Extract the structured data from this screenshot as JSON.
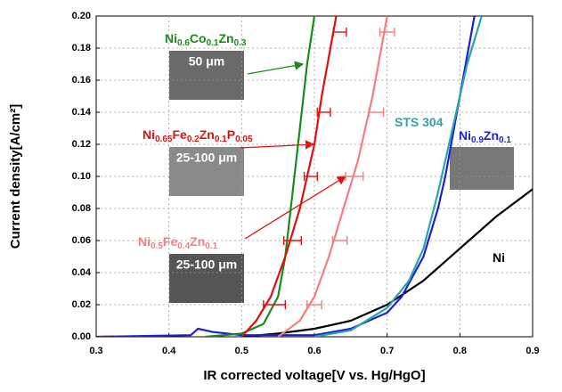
{
  "chart_data": {
    "type": "line",
    "xlabel": "IR corrected voltage[V vs. Hg/HgO]",
    "ylabel": "Current density[A/cm²]",
    "xlim": [
      0.3,
      0.9
    ],
    "xticks": [
      0.3,
      0.4,
      0.5,
      0.6,
      0.7,
      0.8,
      0.9
    ],
    "ylim": [
      0,
      0.2
    ],
    "yticks": [
      {
        "value": 0,
        "label": "0.00"
      },
      {
        "value": 0.02,
        "label": "0.02"
      },
      {
        "value": 0.04,
        "label": "0.04"
      },
      {
        "value": 0.06,
        "label": "0.06"
      },
      {
        "value": 0.08,
        "label": "0.08"
      },
      {
        "value": 0.1,
        "label": "0.10"
      },
      {
        "value": 0.12,
        "label": "0.12"
      },
      {
        "value": 0.14,
        "label": "0.14"
      },
      {
        "value": 0.16,
        "label": "0.16"
      },
      {
        "value": 0.18,
        "label": "0.18"
      },
      {
        "value": 0.2,
        "label": "0.20"
      }
    ],
    "grid": true,
    "series": [
      {
        "name": "Ni",
        "color": "#000000",
        "x": [
          0.5,
          0.55,
          0.6,
          0.65,
          0.7,
          0.75,
          0.8,
          0.85,
          0.9
        ],
        "values": [
          0,
          0.002,
          0.005,
          0.01,
          0.02,
          0.035,
          0.055,
          0.075,
          0.092
        ]
      },
      {
        "name": "Ni0.9Zn0.1",
        "color": "#1f1fd0",
        "x": [
          0.3,
          0.43,
          0.44,
          0.46,
          0.5,
          0.6,
          0.65,
          0.7,
          0.72,
          0.75,
          0.77,
          0.78,
          0.8,
          0.82
        ],
        "values": [
          0,
          0.001,
          0.005,
          0.003,
          0.001,
          0.001,
          0.005,
          0.015,
          0.025,
          0.05,
          0.08,
          0.1,
          0.15,
          0.2
        ]
      },
      {
        "name": "STS 304",
        "color": "#2aa5a5",
        "x": [
          0.6,
          0.65,
          0.7,
          0.73,
          0.75,
          0.77,
          0.79,
          0.81,
          0.83
        ],
        "values": [
          0,
          0.004,
          0.018,
          0.035,
          0.055,
          0.09,
          0.13,
          0.17,
          0.2
        ]
      },
      {
        "name": "Ni0.6Co0.1Zn0.3",
        "color": "#1a8a1a",
        "x": [
          0.45,
          0.5,
          0.53,
          0.55,
          0.56,
          0.57,
          0.58,
          0.59,
          0.6
        ],
        "values": [
          0,
          0.002,
          0.008,
          0.025,
          0.05,
          0.09,
          0.13,
          0.17,
          0.2
        ]
      },
      {
        "name": "Ni0.65Fe0.2Zn0.1P0.05",
        "color": "#e01010",
        "x": [
          0.5,
          0.52,
          0.54,
          0.56,
          0.58,
          0.6,
          0.61,
          0.63
        ],
        "values": [
          0,
          0.01,
          0.025,
          0.05,
          0.08,
          0.12,
          0.15,
          0.2
        ],
        "error_bars": {
          "x": [
            0.635,
            0.613,
            0.595,
            0.57,
            0.545
          ],
          "y": [
            0.19,
            0.14,
            0.1,
            0.06,
            0.02
          ],
          "xerr": [
            0.009,
            0.009,
            0.009,
            0.012,
            0.015
          ]
        }
      },
      {
        "name": "Ni0.5Fe0.4Zn0.1",
        "color": "#f08080",
        "x": [
          0.55,
          0.58,
          0.6,
          0.62,
          0.64,
          0.66,
          0.68,
          0.7
        ],
        "values": [
          0,
          0.01,
          0.025,
          0.05,
          0.08,
          0.11,
          0.15,
          0.2
        ],
        "error_bars": {
          "x": [
            0.7,
            0.685,
            0.655,
            0.635,
            0.6
          ],
          "y": [
            0.19,
            0.14,
            0.1,
            0.06,
            0.02
          ],
          "xerr": [
            0.01,
            0.01,
            0.012,
            0.01,
            0.01
          ]
        }
      }
    ],
    "annotations": [
      "50 μm",
      "25-100 μm",
      "25-100 μm"
    ]
  }
}
